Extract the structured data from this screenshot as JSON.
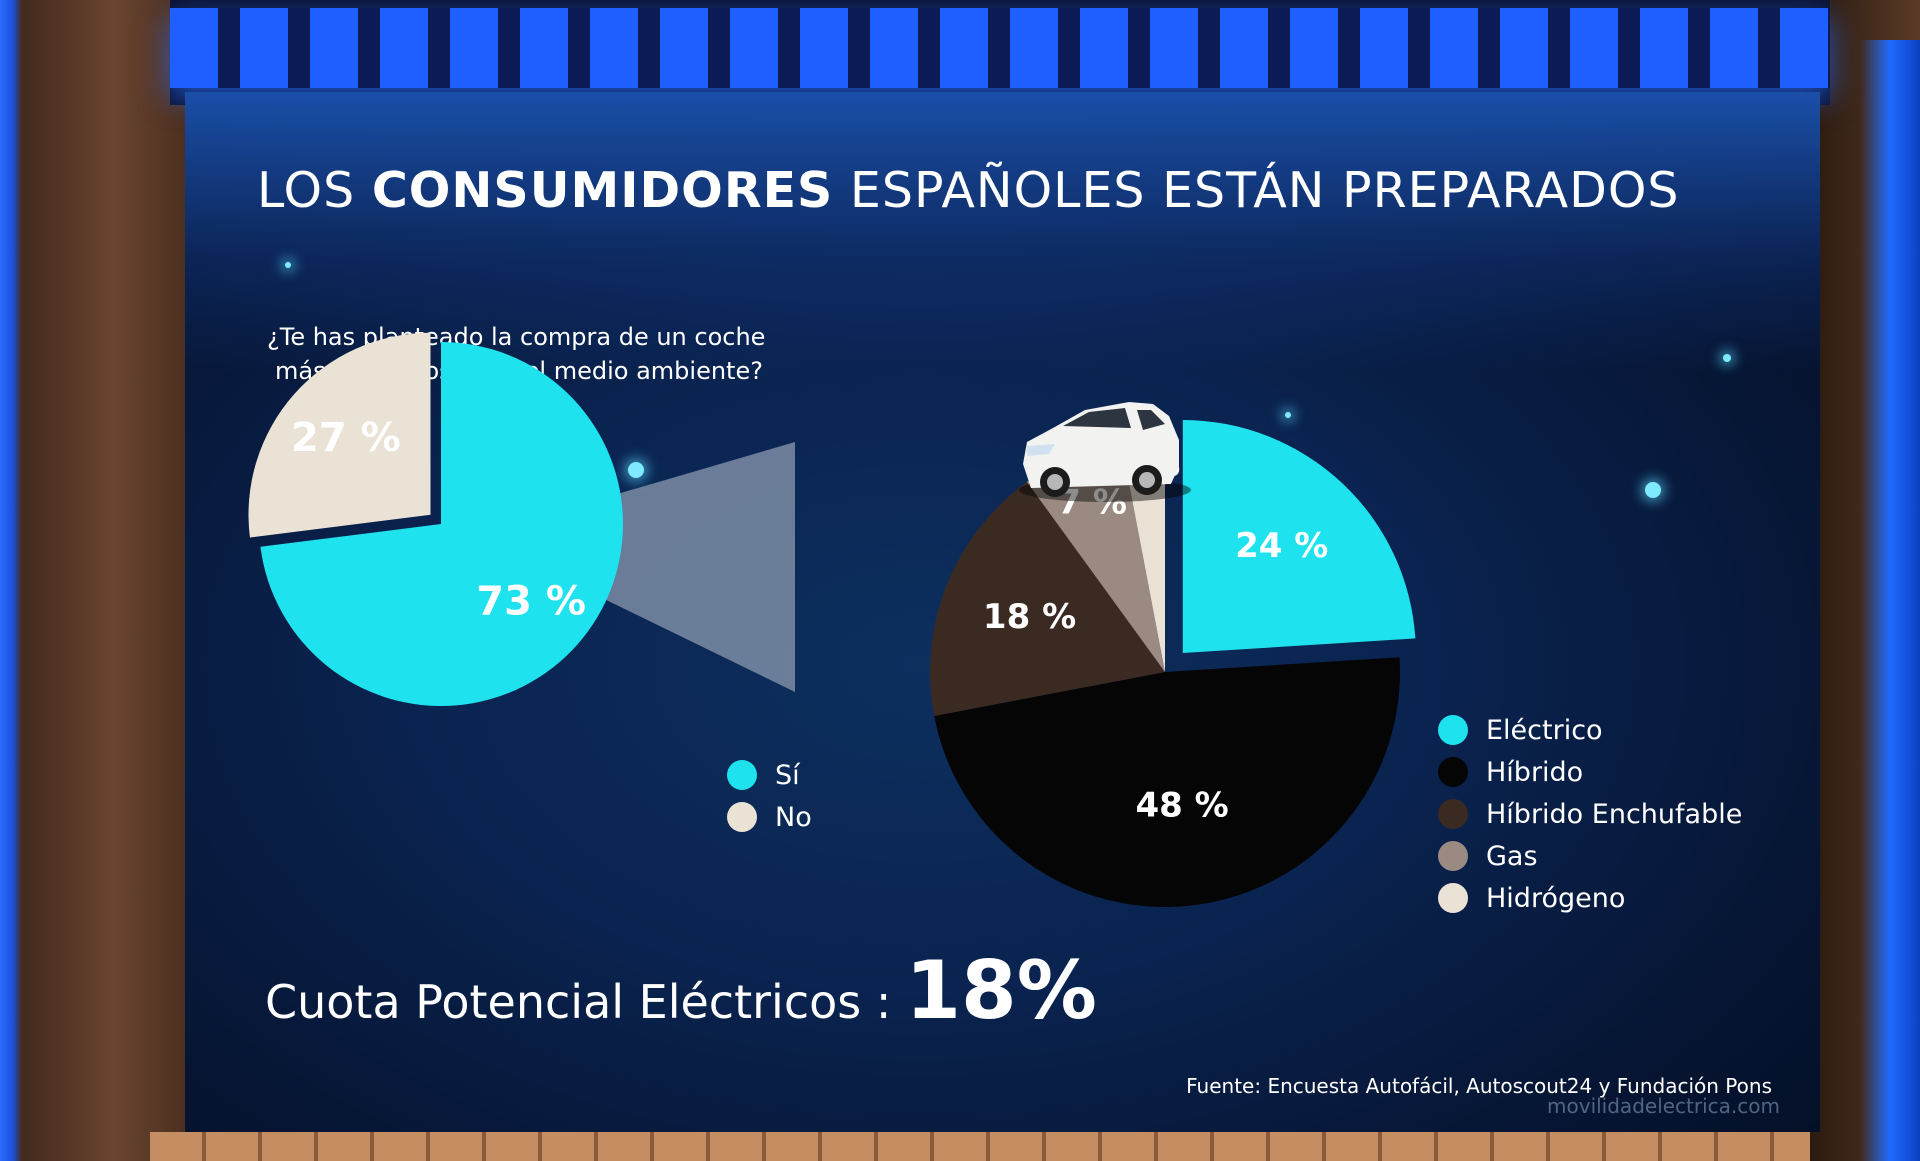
{
  "title": {
    "prefix": "LOS ",
    "bold": "CONSUMIDORES",
    "suffix": " ESPAÑOLES ESTÁN PREPARADOS"
  },
  "question": {
    "line1": "¿Te has planteado la compra de un coche",
    "line2": "más respetuoso con el medio ambiente?"
  },
  "chart_data": [
    {
      "type": "pie",
      "slices": [
        {
          "label": "Sí",
          "value": 73,
          "text": "73 %",
          "color": "#1ee3ef"
        },
        {
          "label": "No",
          "value": 27,
          "text": "27 %",
          "color": "#ebe2d6"
        }
      ],
      "legend": [
        "Sí",
        "No"
      ],
      "legend_position": "bottom-right"
    },
    {
      "type": "pie",
      "slices": [
        {
          "label": "Eléctrico",
          "value": 24,
          "text": "24 %",
          "color": "#1ee3ef"
        },
        {
          "label": "Híbrido",
          "value": 48,
          "text": "48 %",
          "color": "#050505"
        },
        {
          "label": "Híbrido Enchufable",
          "value": 18,
          "text": "18 %",
          "color": "#3b2a22"
        },
        {
          "label": "Gas",
          "value": 7,
          "text": "7 %",
          "color": "#9a8a82"
        },
        {
          "label": "Hidrógeno",
          "value": 3,
          "text": "3 %",
          "color": "#ebe2d6"
        }
      ],
      "legend": [
        "Eléctrico",
        "Híbrido",
        "Híbrido Enchufable",
        "Gas",
        "Hidrógeno"
      ],
      "legend_position": "right"
    }
  ],
  "cuota": {
    "label": "Cuota Potencial Eléctricos :",
    "value": "18%"
  },
  "source": "Fuente: Encuesta Autofácil,  Autoscout24 y Fundación Pons",
  "watermark": "movilidadelectrica.com"
}
